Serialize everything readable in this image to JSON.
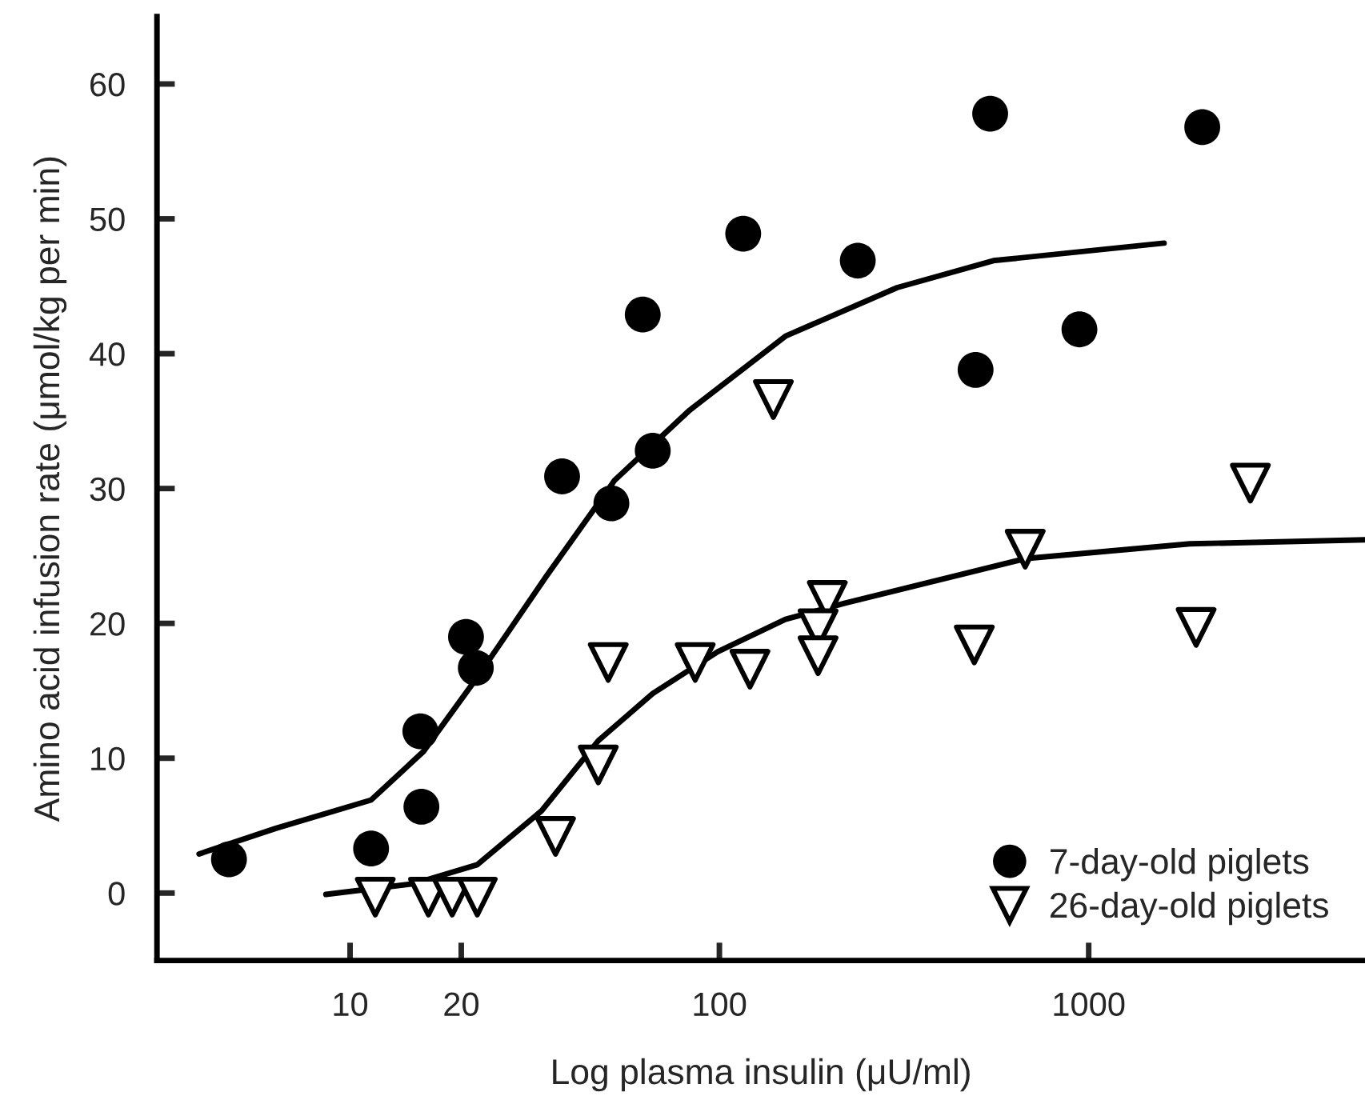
{
  "chart_data": {
    "type": "scatter",
    "xlabel": "Log plasma insulin (μU/ml)",
    "ylabel": "Amino acid infusion rate (μmol/kg per min)",
    "log": "x",
    "xlim": [
      3,
      5600
    ],
    "xticks": [
      10,
      20,
      100,
      1000
    ],
    "ylim": [
      -5,
      65
    ],
    "yticks": [
      0,
      10,
      20,
      30,
      40,
      50,
      60
    ],
    "grid": false,
    "legend": "bottom right",
    "series": [
      {
        "name": "7-day-old piglets",
        "marker": "circle",
        "color": "#000000",
        "x": [
          4.7,
          11.4,
          15.6,
          15.5,
          20.6,
          21.9,
          37.5,
          51,
          66,
          62,
          116,
          237,
          541,
          494,
          944,
          2030
        ],
        "values": [
          2.5,
          3.3,
          6.4,
          12.0,
          19.0,
          16.7,
          30.9,
          28.9,
          32.8,
          42.9,
          48.9,
          46.9,
          57.8,
          38.8,
          41.8,
          56.8
        ]
      },
      {
        "name": "26-day-old piglets",
        "marker": "triangle",
        "color": "#000000",
        "x": [
          11.7,
          16.3,
          18.9,
          22.1,
          36,
          47,
          50,
          86,
          121,
          140,
          196,
          185,
          185,
          490,
          673,
          1954,
          2740
        ],
        "values": [
          -0.3,
          -0.3,
          -0.3,
          -0.3,
          4.2,
          9.5,
          17.1,
          17.1,
          16.6,
          36.6,
          21.7,
          19.6,
          17.6,
          18.4,
          25.5,
          19.7,
          30.4
        ]
      },
      {
        "type": "line",
        "color": "#000000",
        "x": [
          3.9,
          6.3,
          11.4,
          15.8,
          22.1,
          34,
          52,
          83,
          151,
          303,
          552,
          1600
        ],
        "values": [
          2.9,
          4.8,
          6.9,
          10.5,
          16.0,
          23.5,
          30.6,
          35.8,
          41.3,
          44.9,
          46.9,
          48.2
        ]
      },
      {
        "type": "line",
        "color": "#000000",
        "x": [
          8.6,
          14.9,
          22.1,
          33,
          47,
          66,
          99,
          151,
          219,
          673,
          1880,
          5600
        ],
        "values": [
          -0.1,
          0.7,
          2.1,
          6.1,
          11.3,
          14.8,
          17.9,
          20.3,
          21.5,
          24.8,
          25.9,
          26.2
        ]
      }
    ]
  }
}
